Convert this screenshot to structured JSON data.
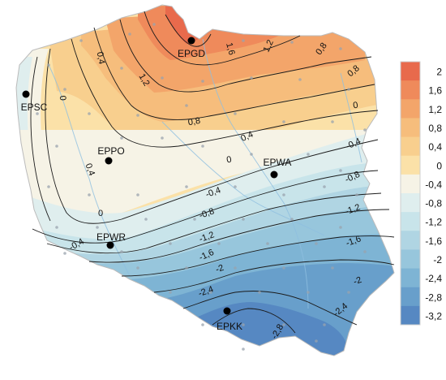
{
  "legend": {
    "ticks": [
      "2",
      "1,6",
      "1,2",
      "0,8",
      "0,4",
      "0",
      "-0,4",
      "-0,8",
      "-1,2",
      "-1,6",
      "-2",
      "-2,4",
      "-2,8",
      "-3,2"
    ],
    "colors": [
      "#e86a4c",
      "#ef8a5b",
      "#f3a56a",
      "#f6bd7c",
      "#f8cf8e",
      "#fbe1a8",
      "#f6f3e6",
      "#dfeeee",
      "#c8e4ea",
      "#b0d5e3",
      "#97c6dc",
      "#7eb4d4",
      "#689fcb",
      "#5688c2"
    ]
  },
  "stations": [
    {
      "code": "EPGD"
    },
    {
      "code": "EPSC"
    },
    {
      "code": "EPPO"
    },
    {
      "code": "EPWA"
    },
    {
      "code": "EPWR"
    },
    {
      "code": "EPKK"
    }
  ],
  "contour_labels": [
    {
      "text": "1,6"
    },
    {
      "text": "1,2"
    },
    {
      "text": "0,8"
    },
    {
      "text": "0,4"
    },
    {
      "text": "0,8"
    },
    {
      "text": "1,2"
    },
    {
      "text": "0"
    },
    {
      "text": "0,8"
    },
    {
      "text": "0,4"
    },
    {
      "text": "0"
    },
    {
      "text": "0"
    },
    {
      "text": "-0,4"
    },
    {
      "text": "0,4"
    },
    {
      "text": "-0,4"
    },
    {
      "text": "-0,8"
    },
    {
      "text": "0"
    },
    {
      "text": "-0,8"
    },
    {
      "text": "-1,2"
    },
    {
      "text": "-0,4"
    },
    {
      "text": "-1,2"
    },
    {
      "text": "-1,6"
    },
    {
      "text": "-1,6"
    },
    {
      "text": "-2"
    },
    {
      "text": "-2"
    },
    {
      "text": "-2,4"
    },
    {
      "text": "-2,4"
    },
    {
      "text": "-2,8"
    }
  ]
}
